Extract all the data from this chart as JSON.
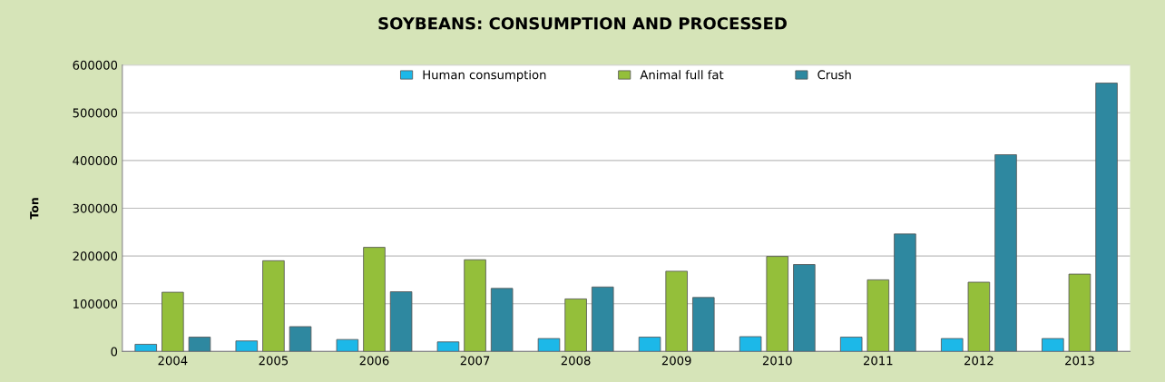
{
  "chart_data": {
    "type": "bar",
    "title": "SOYBEANS: CONSUMPTION AND PROCESSED",
    "ylabel": "Ton",
    "categories": [
      "2004",
      "2005",
      "2006",
      "2007",
      "2008",
      "2009",
      "2010",
      "2011",
      "2012",
      "2013"
    ],
    "series": [
      {
        "name": "Human consumption",
        "color": "#1cb8e8",
        "values": [
          15000,
          22000,
          25000,
          20000,
          27000,
          30000,
          31000,
          30000,
          27000,
          27000
        ]
      },
      {
        "name": "Animal full fat",
        "color": "#94bf3a",
        "values": [
          124000,
          190000,
          218000,
          192000,
          110000,
          168000,
          199000,
          150000,
          145000,
          162000
        ]
      },
      {
        "name": "Crush",
        "color": "#2e88a0",
        "values": [
          30000,
          52000,
          125000,
          132000,
          135000,
          113000,
          182000,
          246000,
          412000,
          562000
        ]
      }
    ],
    "ylim": [
      0,
      600000
    ],
    "yticks": [
      0,
      100000,
      200000,
      300000,
      400000,
      500000,
      600000
    ],
    "grid": "y",
    "legend": "top"
  }
}
